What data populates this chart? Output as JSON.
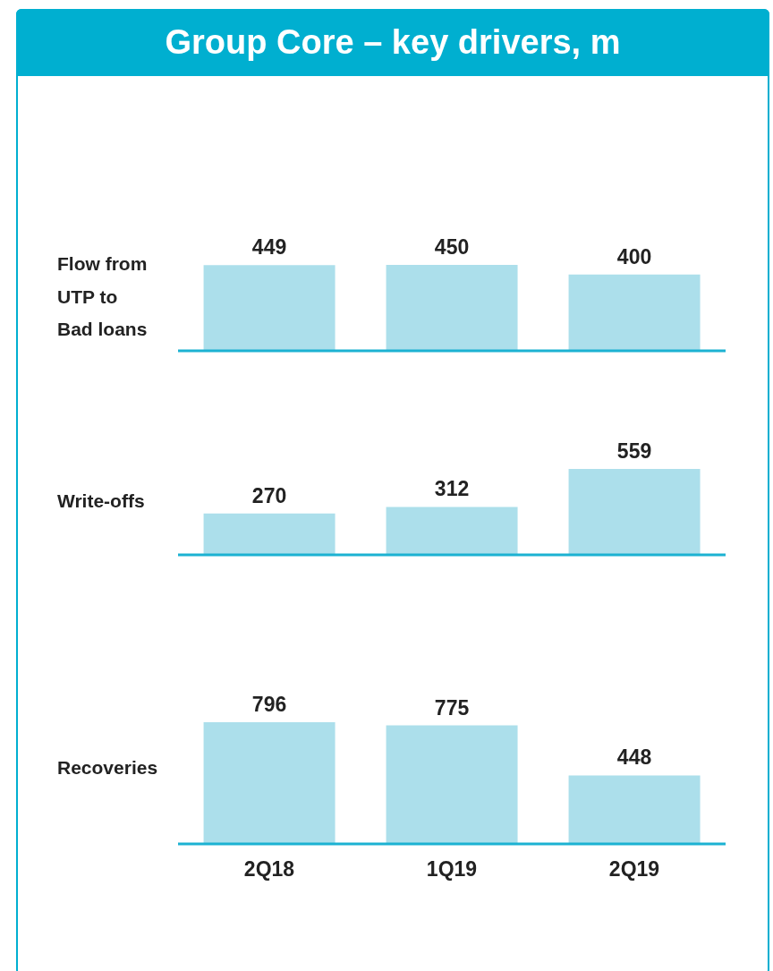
{
  "chart_data": [
    {
      "type": "bar",
      "title": "Group Core – key drivers, m",
      "ylabel": "Flow from UTP to Bad loans",
      "categories": [
        null,
        null,
        null
      ],
      "values": [
        449,
        450,
        400
      ],
      "color": "#acdfeb",
      "data_labels": true,
      "tick_labels": false
    },
    {
      "type": "bar",
      "ylabel": "Write-offs",
      "categories": [
        null,
        null,
        null
      ],
      "values": [
        270,
        312,
        559
      ],
      "color": "#acdfeb",
      "data_labels": true,
      "tick_labels": false
    },
    {
      "type": "bar",
      "ylabel": "Recoveries",
      "categories": [
        "2Q18",
        "1Q19",
        "2Q19"
      ],
      "values": [
        796,
        775,
        448
      ],
      "color": "#acdfeb",
      "data_labels": true,
      "tick_labels": "x"
    }
  ]
}
